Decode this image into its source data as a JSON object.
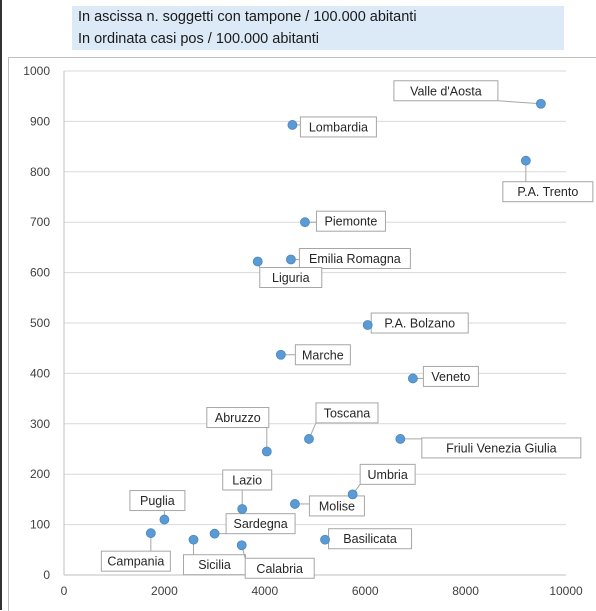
{
  "header": {
    "line1": "In ascissa n. soggetti con tampone / 100.000 abitanti",
    "line2": "In ordinata casi pos / 100.000 abitanti"
  },
  "colors": {
    "marker": "#5b9bd5",
    "grid": "#d9d9d9",
    "axis": "#bfbfbf",
    "header_bg": "#dce9f6"
  },
  "chart_data": {
    "type": "scatter",
    "title": "",
    "xlabel": "In ascissa n. soggetti con tampone / 100.000 abitanti",
    "ylabel": "In ordinata casi pos / 100.000 abitanti",
    "xlim": [
      0,
      10000
    ],
    "ylim": [
      0,
      1000
    ],
    "xticks": [
      0,
      2000,
      4000,
      6000,
      8000,
      10000
    ],
    "yticks": [
      0,
      100,
      200,
      300,
      400,
      500,
      600,
      700,
      800,
      900,
      1000
    ],
    "grid": "horizontal",
    "points": [
      {
        "name": "Valle d'Aosta",
        "x": 9500,
        "y": 935
      },
      {
        "name": "Lombardia",
        "x": 4550,
        "y": 893
      },
      {
        "name": "P.A. Trento",
        "x": 9200,
        "y": 822
      },
      {
        "name": "Piemonte",
        "x": 4800,
        "y": 700
      },
      {
        "name": "Emilia Romagna",
        "x": 4520,
        "y": 626
      },
      {
        "name": "Liguria",
        "x": 3860,
        "y": 622
      },
      {
        "name": "P.A. Bolzano",
        "x": 6050,
        "y": 496
      },
      {
        "name": "Marche",
        "x": 4320,
        "y": 437
      },
      {
        "name": "Veneto",
        "x": 6950,
        "y": 390
      },
      {
        "name": "Toscana",
        "x": 4880,
        "y": 270
      },
      {
        "name": "Friuli Venezia Giulia",
        "x": 6700,
        "y": 270
      },
      {
        "name": "Abruzzo",
        "x": 4040,
        "y": 245
      },
      {
        "name": "Umbria",
        "x": 5750,
        "y": 160
      },
      {
        "name": "Lazio",
        "x": 3550,
        "y": 131
      },
      {
        "name": "Molise",
        "x": 4600,
        "y": 141
      },
      {
        "name": "Puglia",
        "x": 2000,
        "y": 110
      },
      {
        "name": "Sardegna",
        "x": 3000,
        "y": 82
      },
      {
        "name": "Campania",
        "x": 1730,
        "y": 83
      },
      {
        "name": "Basilicata",
        "x": 5200,
        "y": 70
      },
      {
        "name": "Sicilia",
        "x": 2580,
        "y": 70
      },
      {
        "name": "Calabria",
        "x": 3540,
        "y": 59
      }
    ]
  }
}
